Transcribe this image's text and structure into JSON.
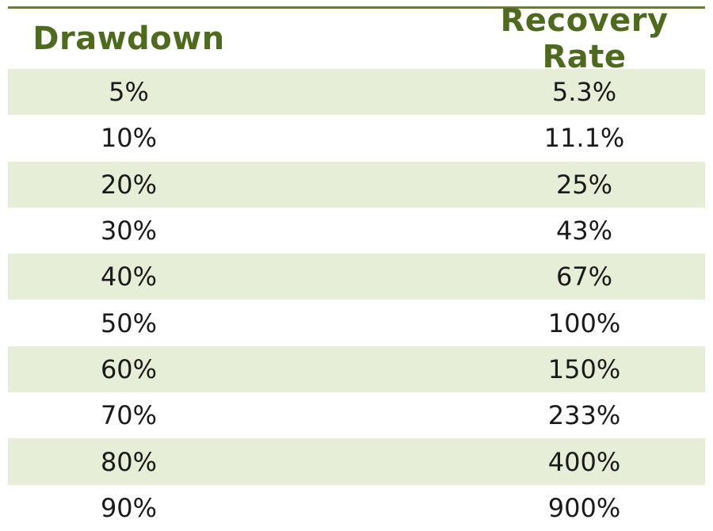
{
  "table": {
    "headers": [
      "Drawdown",
      "Recovery Rate"
    ],
    "rows": [
      {
        "drawdown": "5%",
        "recovery": "5.3%"
      },
      {
        "drawdown": "10%",
        "recovery": "11.1%"
      },
      {
        "drawdown": "20%",
        "recovery": "25%"
      },
      {
        "drawdown": "30%",
        "recovery": "43%"
      },
      {
        "drawdown": "40%",
        "recovery": "67%"
      },
      {
        "drawdown": "50%",
        "recovery": "100%"
      },
      {
        "drawdown": "60%",
        "recovery": "150%"
      },
      {
        "drawdown": "70%",
        "recovery": "233%"
      },
      {
        "drawdown": "80%",
        "recovery": "400%"
      },
      {
        "drawdown": "90%",
        "recovery": "900%"
      }
    ]
  },
  "colors": {
    "header_text": "#4e6a1e",
    "rule": "#6b7a3e",
    "band": "#e7eed8",
    "body_text": "#1a1a1a"
  }
}
